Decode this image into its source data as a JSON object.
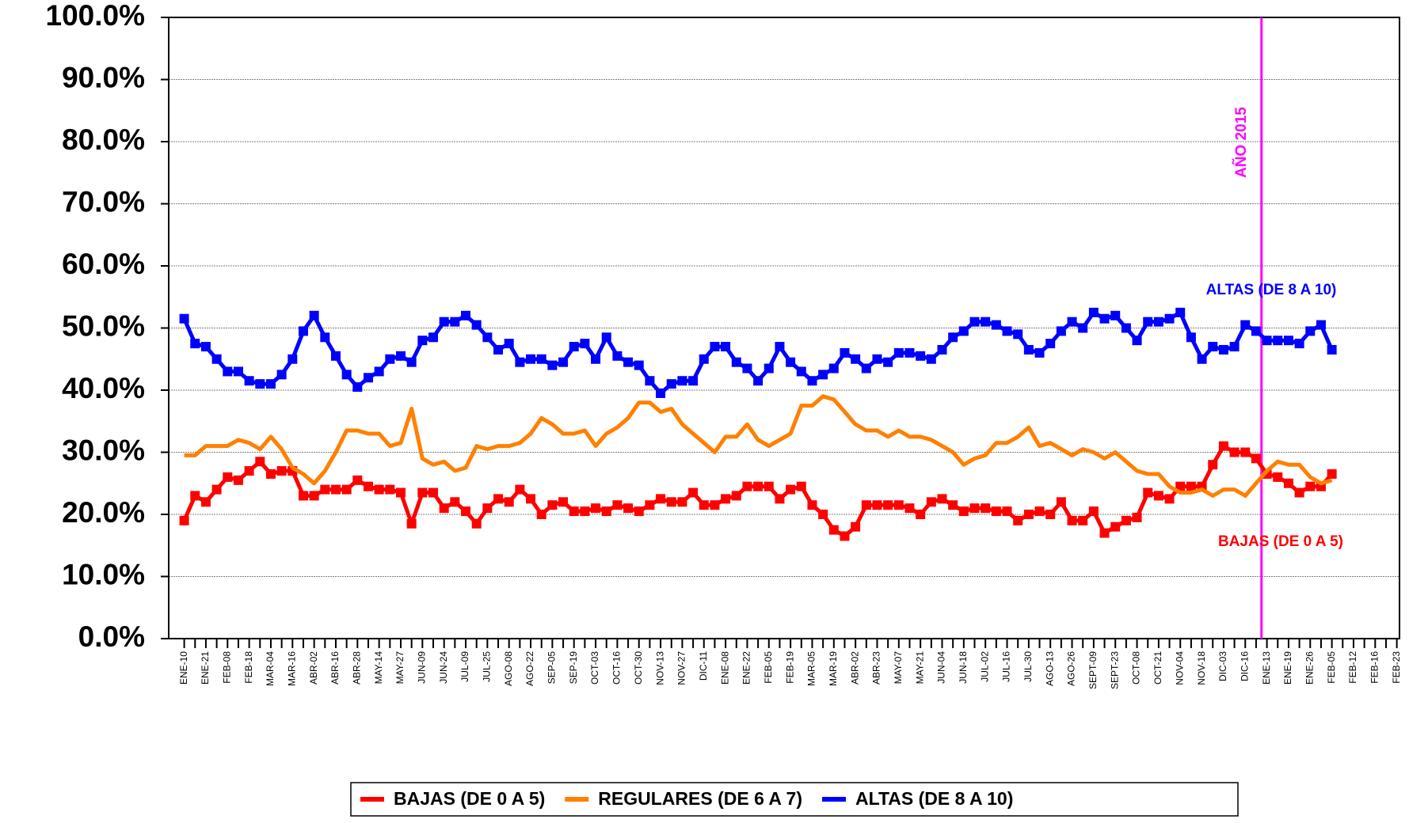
{
  "chart_data": {
    "type": "line",
    "categories": [
      "ENE-10",
      null,
      "ENE-21",
      null,
      "FEB-08",
      null,
      "FEB-18",
      null,
      "MAR-04",
      null,
      "MAR-16",
      null,
      "ABR-02",
      null,
      "ABR-16",
      null,
      "ABR-28",
      null,
      "MAY-14",
      null,
      "MAY-27",
      null,
      "JUN-09",
      null,
      "JUN-24",
      null,
      "JUL-09",
      null,
      "JUL-25",
      null,
      "AGO-08",
      null,
      "AGO-22",
      null,
      "SEP-05",
      null,
      "SEP-19",
      null,
      "OCT-03",
      null,
      "OCT-16",
      null,
      "OCT-30",
      null,
      "NOV-13",
      null,
      "NOV-27",
      null,
      "DIC-11",
      null,
      "ENE-08",
      null,
      "ENE-22",
      null,
      "FEB-05",
      null,
      "FEB-19",
      null,
      "MAR-05",
      null,
      "MAR-19",
      null,
      "ABR-02",
      null,
      "ABR-23",
      null,
      "MAY-07",
      null,
      "MAY-21",
      null,
      "JUN-04",
      null,
      "JUN-18",
      null,
      "JUL-02",
      null,
      "JUL-16",
      null,
      "JUL-30",
      null,
      "AGO-13",
      null,
      "AGO-26",
      null,
      "SEPT-09",
      null,
      "SEPT-23",
      null,
      "OCT-08",
      null,
      "OCT-21",
      null,
      "NOV-04",
      null,
      "NOV-18",
      null,
      "DIC-03",
      null,
      "DIC-16",
      null,
      "ENE-13",
      null,
      "ENE-19",
      null,
      "ENE-26",
      null,
      "FEB-05",
      null,
      "FEB-12",
      null,
      "FEB-16",
      null,
      "FEB-23"
    ],
    "series": [
      {
        "name": "BAJAS (DE 0 A 5)",
        "color": "#ff0000",
        "values": [
          19,
          23,
          22,
          24,
          26,
          25.5,
          27,
          28.5,
          26.5,
          27,
          27,
          23,
          23,
          24,
          24,
          24,
          25.5,
          24.5,
          24,
          24,
          23.5,
          18.5,
          23.5,
          23.5,
          21,
          22,
          20.5,
          18.5,
          21,
          22.5,
          22,
          24,
          22.5,
          20,
          21.5,
          22,
          20.5,
          20.5,
          21,
          20.5,
          21.5,
          21,
          20.5,
          21.5,
          22.5,
          22,
          22,
          23.5,
          21.5,
          21.5,
          22.5,
          23,
          24.5,
          24.5,
          24.5,
          22.5,
          24,
          24.5,
          21.5,
          20,
          17.5,
          16.5,
          18,
          21.5,
          21.5,
          21.5,
          21.5,
          21,
          20,
          22,
          22.5,
          21.5,
          20.5,
          21,
          21,
          20.5,
          20.5,
          19,
          20,
          20.5,
          20,
          22,
          19,
          19,
          20.5,
          17,
          18,
          19,
          19.5,
          23.5,
          23,
          22.5,
          24.5,
          24.5,
          24.5,
          28,
          31,
          30,
          30,
          29,
          26.5,
          26,
          25,
          23.5,
          24.5,
          24.5,
          26.5,
          null,
          null,
          null,
          null,
          null,
          null
        ]
      },
      {
        "name": "REGULARES (DE 6 A 7)",
        "color": "#ff8000",
        "values": [
          29.5,
          29.5,
          31,
          31,
          31,
          32,
          31.5,
          30.5,
          32.5,
          30.5,
          27.5,
          26.5,
          25,
          27,
          30,
          33.5,
          33.5,
          33,
          33,
          31,
          31.5,
          37,
          29,
          28,
          28.5,
          27,
          27.5,
          31,
          30.5,
          31,
          31,
          31.5,
          33,
          35.5,
          34.5,
          33,
          33,
          33.5,
          31,
          33,
          34,
          35.5,
          38,
          38,
          36.5,
          37,
          34.5,
          33,
          31.5,
          30,
          32.5,
          32.5,
          34.5,
          32,
          31,
          32,
          33,
          37.5,
          37.5,
          39,
          38.5,
          36.5,
          34.5,
          33.5,
          33.5,
          32.5,
          33.5,
          32.5,
          32.5,
          32,
          31,
          30,
          28,
          29,
          29.5,
          31.5,
          31.5,
          32.5,
          34,
          31,
          31.5,
          30.5,
          29.5,
          30.5,
          30,
          29,
          30,
          28.5,
          27,
          26.5,
          26.5,
          24.5,
          23.5,
          23.5,
          24,
          23,
          24,
          24,
          23,
          25,
          27,
          28.5,
          28,
          28,
          26,
          25,
          25.5,
          null,
          null,
          null,
          null,
          null,
          null
        ]
      },
      {
        "name": "ALTAS (DE 8 A 10)",
        "color": "#0000ff",
        "values": [
          51.5,
          47.5,
          47,
          45,
          43,
          43,
          41.5,
          41,
          41,
          42.5,
          45,
          49.5,
          52,
          48.5,
          45.5,
          42.5,
          40.5,
          42,
          43,
          45,
          45.5,
          44.5,
          48,
          48.5,
          51,
          51,
          52,
          50.5,
          48.5,
          46.5,
          47.5,
          44.5,
          45,
          45,
          44,
          44.5,
          47,
          47.5,
          45,
          48.5,
          45.5,
          44.5,
          44,
          41.5,
          39.5,
          41,
          41.5,
          41.5,
          45,
          47,
          47,
          44.5,
          43.5,
          41.5,
          43.5,
          47,
          44.5,
          43,
          41.5,
          42.5,
          43.5,
          46,
          45,
          43.5,
          45,
          44.5,
          46,
          46,
          45.5,
          45,
          46.5,
          48.5,
          49.5,
          51,
          51,
          50.5,
          49.5,
          49,
          46.5,
          46,
          47.5,
          49.5,
          51,
          50,
          52.5,
          51.5,
          52,
          50,
          48,
          51,
          51,
          51.5,
          52.5,
          48.5,
          45,
          47,
          46.5,
          47,
          50.5,
          49.5,
          48,
          48,
          48,
          47.5,
          49.5,
          50.5,
          46.5,
          null,
          null,
          null,
          null,
          null,
          null
        ]
      }
    ],
    "ylim": [
      0,
      100
    ],
    "yticks": [
      {
        "value": 0,
        "label": "0.0%"
      },
      {
        "value": 10,
        "label": "10.0%"
      },
      {
        "value": 20,
        "label": "20.0%"
      },
      {
        "value": 30,
        "label": "30.0%"
      },
      {
        "value": 40,
        "label": "40.0%"
      },
      {
        "value": 50,
        "label": "50.0%"
      },
      {
        "value": 60,
        "label": "60.0%"
      },
      {
        "value": 70,
        "label": "70.0%"
      },
      {
        "value": 80,
        "label": "80.0%"
      },
      {
        "value": 90,
        "label": "90.0%"
      },
      {
        "value": 100,
        "label": "100.0%"
      }
    ],
    "grid": true,
    "legend": "bottom",
    "annotations": [
      {
        "text": "ALTAS (DE 8 A 10)",
        "color": "#0000ff"
      },
      {
        "text": "BAJAS (DE 0 A 5)",
        "color": "#ff0000"
      }
    ],
    "vertical_line": {
      "label": "AÑO 2015",
      "color": "#ff00ff"
    }
  }
}
